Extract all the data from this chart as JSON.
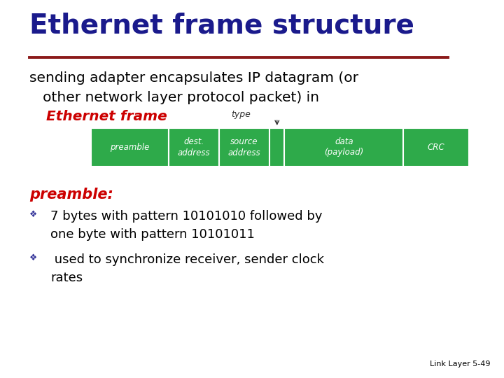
{
  "title": "Ethernet frame structure",
  "title_color": "#1a1a8c",
  "title_underline_color": "#8b1a1a",
  "bg_color": "#ffffff",
  "subtitle_line1": "sending adapter encapsulates IP datagram (or",
  "subtitle_line2": "   other network layer protocol packet) in",
  "subtitle_color": "#000000",
  "ethernet_frame_label": "Ethernet frame",
  "ethernet_frame_color": "#cc0000",
  "type_label": "type",
  "type_label_color": "#333333",
  "frame_fields": [
    "preamble",
    "dest.\naddress",
    "source\naddress",
    "",
    "data\n(payload)",
    "CRC"
  ],
  "frame_field_widths": [
    1.3,
    0.85,
    0.85,
    0.25,
    2.0,
    1.1
  ],
  "frame_box_color": "#2eaa4a",
  "frame_text_color": "#ffffff",
  "preamble_label": "preamble:",
  "preamble_label_color": "#cc0000",
  "bullet1_line1": "7 bytes with pattern 10101010 followed by",
  "bullet1_line2": "one byte with pattern 10101011",
  "bullet2_line1": " used to synchronize receiver, sender clock",
  "bullet2_line2": "rates",
  "bullet_color": "#000000",
  "bullet_marker_color": "#333399",
  "footer_text": "Link Layer 5-49",
  "footer_color": "#000000"
}
